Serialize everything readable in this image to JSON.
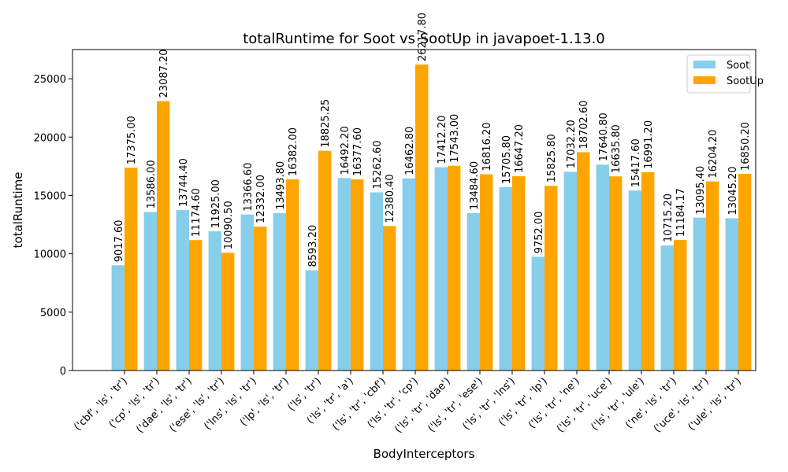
{
  "chart_data": {
    "type": "bar",
    "title": "totalRuntime for Soot vs SootUp in javapoet-1.13.0",
    "xlabel": "BodyInterceptors",
    "ylabel": "totalRuntime",
    "ylim": [
      0,
      27500
    ],
    "yticks": [
      0,
      5000,
      10000,
      15000,
      20000,
      25000
    ],
    "ytick_labels": [
      "0",
      "5000",
      "10000",
      "15000",
      "20000",
      "25000"
    ],
    "grid": false,
    "legend_position": "top-right",
    "categories": [
      "('cbf', 'ls', 'tr')",
      "('cp', 'ls', 'tr')",
      "('dae', 'ls', 'tr')",
      "('ese', 'ls', 'tr')",
      "('lns', 'ls', 'tr')",
      "('lp', 'ls', 'tr')",
      "('ls', 'tr')",
      "('ls', 'tr', 'a')",
      "('ls', 'tr', 'cbf')",
      "('ls', 'tr', 'cp')",
      "('ls', 'tr', 'dae')",
      "('ls', 'tr', 'ese')",
      "('ls', 'tr', 'lns')",
      "('ls', 'tr', 'lp')",
      "('ls', 'tr', 'ne')",
      "('ls', 'tr', 'uce')",
      "('ls', 'tr', 'ule')",
      "('ne', 'ls', 'tr')",
      "('uce', 'ls', 'tr')",
      "('ule', 'ls', 'tr')"
    ],
    "series": [
      {
        "name": "Soot",
        "color": "#87ceeb",
        "values": [
          9017.6,
          13586.0,
          13744.4,
          11925.0,
          13366.6,
          13493.8,
          8593.2,
          16492.2,
          15262.6,
          16462.8,
          17412.2,
          13484.6,
          15705.8,
          9752.0,
          17032.2,
          17640.8,
          15417.6,
          10715.2,
          13095.4,
          13045.2
        ],
        "labels": [
          "9017.60",
          "13586.00",
          "13744.40",
          "11925.00",
          "13366.60",
          "13493.80",
          "8593.20",
          "16492.20",
          "15262.60",
          "16462.80",
          "17412.20",
          "13484.60",
          "15705.80",
          "9752.00",
          "17032.20",
          "17640.80",
          "15417.60",
          "10715.20",
          "13095.40",
          "13045.20"
        ]
      },
      {
        "name": "SootUp",
        "color": "#ffa500",
        "values": [
          17375.0,
          23087.2,
          11174.6,
          10090.5,
          12332.0,
          16382.0,
          18825.25,
          16377.6,
          12380.4,
          26217.8,
          17543.0,
          16816.2,
          16647.2,
          15825.8,
          18702.6,
          16635.8,
          16991.2,
          11184.17,
          16204.2,
          16850.2
        ],
        "labels": [
          "17375.00",
          "23087.20",
          "11174.60",
          "10090.50",
          "12332.00",
          "16382.00",
          "18825.25",
          "16377.60",
          "12380.40",
          "26217.80",
          "17543.00",
          "16816.20",
          "16647.20",
          "15825.80",
          "18702.60",
          "16635.80",
          "16991.20",
          "11184.17",
          "16204.20",
          "16850.20"
        ]
      }
    ]
  }
}
